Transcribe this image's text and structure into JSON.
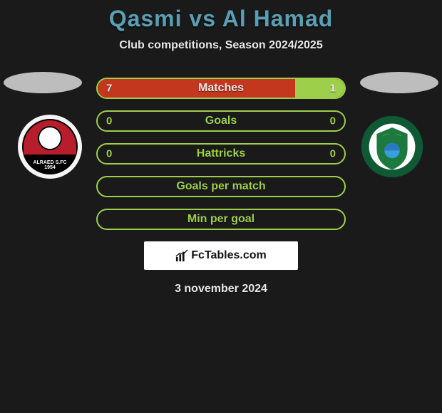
{
  "title": "Qasmi vs Al Hamad",
  "subtitle": "Club competitions, Season 2024/2025",
  "date": "3 november 2024",
  "branding_text": "FcTables.com",
  "colors": {
    "title": "#5a9fb5",
    "text_light": "#e8e8e8",
    "bg": "#1a1a1a"
  },
  "team_left": {
    "name": "Qasmi",
    "logo_accent": "#b81d2c",
    "logo_bg": "#000000"
  },
  "team_right": {
    "name": "Al Hamad",
    "logo_accent": "#1d7a3f",
    "logo_inner": "#ffffff"
  },
  "bars": [
    {
      "label": "Matches",
      "left": "7",
      "right": "1",
      "left_pct": 80,
      "right_pct": 20,
      "left_color": "#c2371d",
      "right_color": "#9ecf4a",
      "border_color": "#9ecf4a",
      "label_color": "#e8e8e8",
      "val_color": "#e8e8e8"
    },
    {
      "label": "Goals",
      "left": "0",
      "right": "0",
      "left_pct": 0,
      "right_pct": 0,
      "left_color": "#c2371d",
      "right_color": "#9ecf4a",
      "border_color": "#9ecf4a",
      "label_color": "#9ecf4a",
      "val_color": "#9ecf4a"
    },
    {
      "label": "Hattricks",
      "left": "0",
      "right": "0",
      "left_pct": 0,
      "right_pct": 0,
      "left_color": "#c2371d",
      "right_color": "#9ecf4a",
      "border_color": "#9ecf4a",
      "label_color": "#9ecf4a",
      "val_color": "#9ecf4a"
    },
    {
      "label": "Goals per match",
      "left": "",
      "right": "",
      "left_pct": 0,
      "right_pct": 0,
      "left_color": "#c2371d",
      "right_color": "#9ecf4a",
      "border_color": "#9ecf4a",
      "label_color": "#9ecf4a",
      "val_color": "#9ecf4a"
    },
    {
      "label": "Min per goal",
      "left": "",
      "right": "",
      "left_pct": 0,
      "right_pct": 0,
      "left_color": "#c2371d",
      "right_color": "#9ecf4a",
      "border_color": "#9ecf4a",
      "label_color": "#9ecf4a",
      "val_color": "#9ecf4a"
    }
  ]
}
